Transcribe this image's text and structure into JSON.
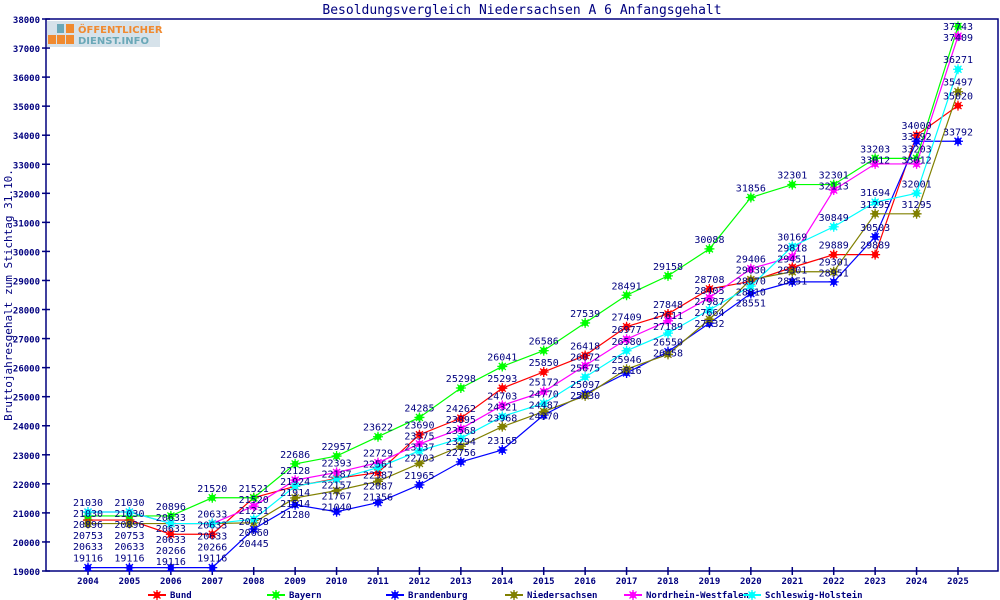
{
  "logo": {
    "line1": "ÖFFENTLICHER",
    "line2": "DIENST.INFO"
  },
  "chart_data": {
    "type": "line",
    "title": "Besoldungsvergleich Niedersachsen A 6 Anfangsgehalt",
    "xlabel": "",
    "ylabel": "Bruttojahresgehalt zum Stichtag 31.10.",
    "ylim": [
      19000,
      38000
    ],
    "yticks": [
      19000,
      20000,
      21000,
      22000,
      23000,
      24000,
      25000,
      26000,
      27000,
      28000,
      29000,
      30000,
      31000,
      32000,
      33000,
      34000,
      35000,
      36000,
      37000,
      38000
    ],
    "x": [
      "2004",
      "2005",
      "2006",
      "2007",
      "2008",
      "2009",
      "2010",
      "2011",
      "2012",
      "2013",
      "2014",
      "2015",
      "2016",
      "2017",
      "2018",
      "2019",
      "2020",
      "2021",
      "2022",
      "2023",
      "2024",
      "2025"
    ],
    "legend_position": "bottom",
    "series": [
      {
        "name": "Bund",
        "color": "#ff0000",
        "values": [
          20753,
          20753,
          20266,
          20266,
          21521,
          21914,
          22187,
          22387,
          23690,
          24262,
          25293,
          25850,
          26418,
          27409,
          27848,
          28708,
          28970,
          29451,
          29889,
          29889,
          34000,
          35020
        ]
      },
      {
        "name": "Bayern",
        "color": "#00ff00",
        "values": [
          20896,
          20896,
          20896,
          21520,
          21520,
          22686,
          22957,
          23622,
          24285,
          25298,
          26041,
          26586,
          27539,
          28491,
          29158,
          30088,
          31856,
          32301,
          32301,
          33203,
          33203,
          37743
        ]
      },
      {
        "name": "Brandenburg",
        "color": "#0000ff",
        "values": [
          19116,
          19116,
          19116,
          19116,
          20445,
          21280,
          21040,
          21356,
          21965,
          22756,
          23165,
          24370,
          25097,
          25816,
          26550,
          27532,
          28551,
          28951,
          28951,
          30503,
          33792,
          33792
        ]
      },
      {
        "name": "Niedersachsen",
        "color": "#808000",
        "values": [
          20633,
          20633,
          20633,
          20633,
          20660,
          21514,
          21767,
          22087,
          22703,
          23294,
          23968,
          24487,
          25030,
          25946,
          26458,
          27664,
          29030,
          29301,
          29301,
          31295,
          31295,
          35497
        ]
      },
      {
        "name": "Nordrhein-Westfalen",
        "color": "#ff00ff",
        "values": [
          21030,
          21030,
          20633,
          20633,
          21231,
          22128,
          22393,
          22729,
          23375,
          23895,
          24703,
          25172,
          26072,
          26977,
          27611,
          28405,
          29406,
          29818,
          32113,
          33012,
          33012,
          37409
        ]
      },
      {
        "name": "Schleswig-Holstein",
        "color": "#00ffff",
        "values": [
          21030,
          21030,
          20633,
          20633,
          20778,
          21924,
          22157,
          22561,
          23137,
          23568,
          24321,
          24770,
          25675,
          26580,
          27189,
          27987,
          28810,
          30169,
          30849,
          31694,
          32001,
          36271
        ]
      }
    ]
  }
}
